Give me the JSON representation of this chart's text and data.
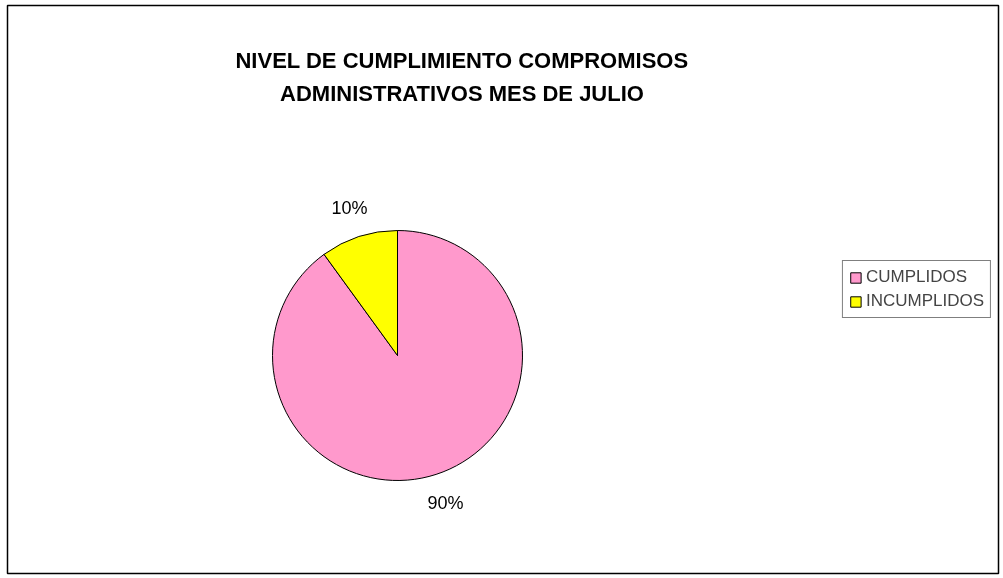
{
  "chart_data": {
    "type": "pie",
    "title": "NIVEL DE CUMPLIMIENTO COMPROMISOS ADMINISTRATIVOS MES DE JULIO",
    "categories": [
      "CUMPLIDOS",
      "INCUMPLIDOS"
    ],
    "values": [
      90,
      10
    ],
    "colors": [
      "#ff99cc",
      "#ffff00"
    ],
    "value_labels": [
      "90%",
      "10%"
    ],
    "legend": "right"
  }
}
